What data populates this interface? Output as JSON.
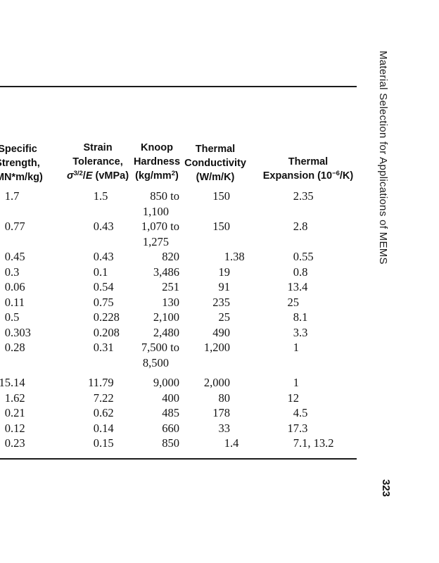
{
  "page": {
    "margin_title": "Material Selection for Applications of MEMS",
    "page_number": "323"
  },
  "table": {
    "headers": [
      {
        "id": "specific-strength",
        "lines": [
          [
            {
              "t": "Specific"
            }
          ],
          [
            {
              "t": "Strength,"
            }
          ],
          [
            {
              "t": "(MN*m/kg)"
            }
          ]
        ]
      },
      {
        "id": "strain-tolerance",
        "lines": [
          [
            {
              "t": "Strain"
            }
          ],
          [
            {
              "t": "Tolerance,"
            }
          ],
          [
            {
              "t": "σ",
              "s": "i"
            },
            {
              "t": "3/2",
              "s": "sup"
            },
            {
              "t": "/"
            },
            {
              "t": "E",
              "s": "i"
            },
            {
              "t": " (vMPa)"
            }
          ]
        ]
      },
      {
        "id": "knoop-hardness",
        "lines": [
          [
            {
              "t": "Knoop"
            }
          ],
          [
            {
              "t": "Hardness"
            }
          ],
          [
            {
              "t": "(kg/mm"
            },
            {
              "t": "2",
              "s": "sup"
            },
            {
              "t": ")"
            }
          ]
        ]
      },
      {
        "id": "thermal-conductivity",
        "lines": [
          [
            {
              "t": "Thermal"
            }
          ],
          [
            {
              "t": "Conductivity"
            }
          ],
          [
            {
              "t": "(W/m/K)"
            }
          ]
        ]
      },
      {
        "id": "thermal-expansion",
        "lines": [
          [
            {
              "t": "Thermal"
            }
          ],
          [
            {
              "t": "Expansion (10"
            },
            {
              "t": "−6",
              "s": "sup"
            },
            {
              "t": "/K)"
            }
          ]
        ]
      }
    ],
    "rows": [
      [
        [
          "1.7"
        ],
        [
          "1.5"
        ],
        [
          "850 to",
          "1,100"
        ],
        [
          "150"
        ],
        [
          "2.35"
        ]
      ],
      [
        [
          "0.77"
        ],
        [
          "0.43"
        ],
        [
          "1,070 to",
          "1,275"
        ],
        [
          "150"
        ],
        [
          "2.8"
        ]
      ],
      [
        [
          "0.45"
        ],
        [
          "0.43"
        ],
        [
          "820"
        ],
        [
          "1.38"
        ],
        [
          "0.55"
        ]
      ],
      [
        [
          "0.3"
        ],
        [
          "0.1"
        ],
        [
          "3,486"
        ],
        [
          "19"
        ],
        [
          "0.8"
        ]
      ],
      [
        [
          "0.06"
        ],
        [
          "0.54"
        ],
        [
          "251"
        ],
        [
          "91"
        ],
        [
          "13.4"
        ]
      ],
      [
        [
          "0.11"
        ],
        [
          "0.75"
        ],
        [
          "130"
        ],
        [
          "235"
        ],
        [
          "25"
        ]
      ],
      [
        [
          "0.5"
        ],
        [
          "0.228"
        ],
        [
          "2,100"
        ],
        [
          "25"
        ],
        [
          "8.1"
        ]
      ],
      [
        [
          "0.303"
        ],
        [
          "0.208"
        ],
        [
          "2,480"
        ],
        [
          "490"
        ],
        [
          "3.3"
        ]
      ],
      [
        [
          "0.28"
        ],
        [
          "0.31"
        ],
        [
          "7,500 to",
          "8,500"
        ],
        [
          "1,200"
        ],
        [
          "1"
        ]
      ],
      [
        [
          "15.14"
        ],
        [
          "11.79"
        ],
        [
          "9,000"
        ],
        [
          "2,000"
        ],
        [
          "1"
        ]
      ],
      [
        [
          "1.62"
        ],
        [
          "7.22"
        ],
        [
          "400"
        ],
        [
          "80"
        ],
        [
          "12"
        ]
      ],
      [
        [
          "0.21"
        ],
        [
          "0.62"
        ],
        [
          "485"
        ],
        [
          "178"
        ],
        [
          "4.5"
        ]
      ],
      [
        [
          "0.12"
        ],
        [
          "0.14"
        ],
        [
          "660"
        ],
        [
          "33"
        ],
        [
          "17.3"
        ]
      ],
      [
        [
          "0.23"
        ],
        [
          "0.15"
        ],
        [
          "850"
        ],
        [
          "1.4"
        ],
        [
          "7.1, 13.2"
        ]
      ]
    ],
    "gap_before_rows": [
      9
    ]
  },
  "colors": {
    "text": "#121212",
    "rule": "#1b1b1b",
    "paper": "#ffffff"
  }
}
